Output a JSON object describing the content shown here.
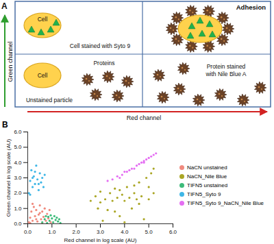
{
  "diagram": {
    "panel_label": "A",
    "y_axis_label": "Green channel",
    "x_axis_label": "Red channel",
    "top_left": {
      "cell": "Cell",
      "caption": "Cell stained with Syto 9"
    },
    "top_right": {
      "caption": "Adhesion"
    },
    "bottom_left": {
      "cell": "Cell",
      "cell_caption": "Unstained particle",
      "protein_caption": "Proteins"
    },
    "bottom_right": {
      "caption": [
        "Protein stained",
        "with Nile Blue A"
      ]
    }
  },
  "chart_data": {
    "panel_label": "B",
    "type": "scatter",
    "xlabel": "Red channel in log scale (AU)",
    "ylabel": "Green channel in log scale (AU)",
    "xlim": [
      0,
      6
    ],
    "ylim": [
      0,
      6
    ],
    "xticks": [
      0,
      1,
      2,
      3,
      4,
      5,
      6
    ],
    "yticks": [
      0,
      1,
      2,
      3,
      4,
      5,
      6
    ],
    "legend": "right",
    "series": [
      {
        "name": "NaCN unstained",
        "color": "#f08a7e",
        "values": [
          [
            0.05,
            0.1
          ],
          [
            0.1,
            0.4
          ],
          [
            0.15,
            0.8
          ],
          [
            0.2,
            0.2
          ],
          [
            0.25,
            1.1
          ],
          [
            0.3,
            0.5
          ],
          [
            0.35,
            0.9
          ],
          [
            0.4,
            0.15
          ],
          [
            0.45,
            0.6
          ],
          [
            0.5,
            1.2
          ],
          [
            0.55,
            0.3
          ],
          [
            0.6,
            0.8
          ],
          [
            0.65,
            0.45
          ],
          [
            0.7,
            1.0
          ],
          [
            0.75,
            0.2
          ],
          [
            0.8,
            0.65
          ],
          [
            0.85,
            0.35
          ],
          [
            0.9,
            0.9
          ],
          [
            0.95,
            0.1
          ],
          [
            0.2,
            1.3
          ],
          [
            0.1,
            0.05
          ],
          [
            0.6,
            0.05
          ],
          [
            0.35,
            0.3
          ],
          [
            0.5,
            0.7
          ]
        ]
      },
      {
        "name": "NaCN_Nile Blue",
        "color": "#aaa624",
        "values": [
          [
            2.6,
            1.5
          ],
          [
            2.8,
            1.8
          ],
          [
            3.0,
            1.4
          ],
          [
            3.0,
            2.1
          ],
          [
            3.2,
            1.6
          ],
          [
            3.3,
            0.9
          ],
          [
            3.4,
            2.0
          ],
          [
            3.5,
            1.5
          ],
          [
            3.6,
            2.3
          ],
          [
            3.7,
            1.7
          ],
          [
            3.8,
            0.5
          ],
          [
            3.9,
            1.9
          ],
          [
            4.0,
            1.5
          ],
          [
            4.1,
            2.4
          ],
          [
            4.2,
            1.7
          ],
          [
            4.3,
            1.0
          ],
          [
            4.4,
            2.0
          ],
          [
            4.5,
            1.6
          ],
          [
            4.6,
            2.7
          ],
          [
            4.7,
            1.8
          ],
          [
            4.8,
            0.3
          ],
          [
            4.9,
            3.0
          ],
          [
            5.0,
            1.6
          ],
          [
            5.1,
            3.3
          ],
          [
            5.2,
            2.0
          ],
          [
            3.1,
            0.2
          ],
          [
            4.0,
            0.1
          ],
          [
            3.6,
            0.8
          ],
          [
            4.6,
            1.3
          ],
          [
            2.9,
            1.0
          ],
          [
            4.4,
            2.5
          ],
          [
            3.8,
            2.2
          ],
          [
            5.2,
            3.6
          ],
          [
            5.0,
            2.4
          ]
        ]
      },
      {
        "name": "TIFN5 unstained",
        "color": "#3dbb7a",
        "values": [
          [
            0.6,
            0.1
          ],
          [
            0.7,
            0.3
          ],
          [
            0.8,
            0.05
          ],
          [
            0.85,
            0.45
          ],
          [
            0.9,
            0.2
          ],
          [
            1.0,
            0.35
          ],
          [
            1.05,
            0.1
          ],
          [
            1.1,
            0.5
          ],
          [
            1.15,
            0.25
          ],
          [
            1.2,
            0.4
          ],
          [
            1.25,
            0.15
          ],
          [
            1.3,
            0.3
          ],
          [
            0.95,
            0.55
          ],
          [
            0.75,
            0.5
          ],
          [
            1.35,
            0.05
          ]
        ]
      },
      {
        "name": "TIFN5_Syto 9",
        "color": "#3eb6e6",
        "values": [
          [
            0.05,
            2.0
          ],
          [
            0.1,
            2.8
          ],
          [
            0.15,
            3.5
          ],
          [
            0.2,
            2.4
          ],
          [
            0.25,
            3.1
          ],
          [
            0.3,
            2.6
          ],
          [
            0.35,
            3.8
          ],
          [
            0.4,
            2.9
          ],
          [
            0.45,
            2.2
          ],
          [
            0.5,
            3.3
          ],
          [
            0.55,
            2.7
          ],
          [
            0.6,
            3.0
          ],
          [
            0.65,
            2.4
          ],
          [
            0.7,
            3.2
          ],
          [
            0.1,
            1.9
          ],
          [
            0.3,
            3.4
          ],
          [
            0.2,
            3.0
          ],
          [
            0.45,
            2.6
          ]
        ]
      },
      {
        "name": "TIFN5_Syto 9_NaCN_Nile Blue",
        "color": "#e46ef2",
        "values": [
          [
            3.3,
            2.8
          ],
          [
            3.5,
            2.9
          ],
          [
            3.7,
            3.1
          ],
          [
            3.9,
            3.2
          ],
          [
            4.0,
            3.4
          ],
          [
            4.2,
            3.5
          ],
          [
            4.3,
            3.6
          ],
          [
            4.5,
            3.8
          ],
          [
            4.6,
            3.9
          ],
          [
            4.7,
            4.0
          ],
          [
            4.8,
            4.1
          ],
          [
            4.9,
            4.2
          ],
          [
            5.0,
            4.3
          ],
          [
            5.1,
            4.4
          ],
          [
            5.2,
            4.5
          ],
          [
            5.3,
            4.6
          ],
          [
            4.4,
            3.6
          ],
          [
            4.1,
            3.4
          ],
          [
            4.8,
            4.0
          ],
          [
            3.8,
            3.0
          ]
        ]
      }
    ]
  }
}
